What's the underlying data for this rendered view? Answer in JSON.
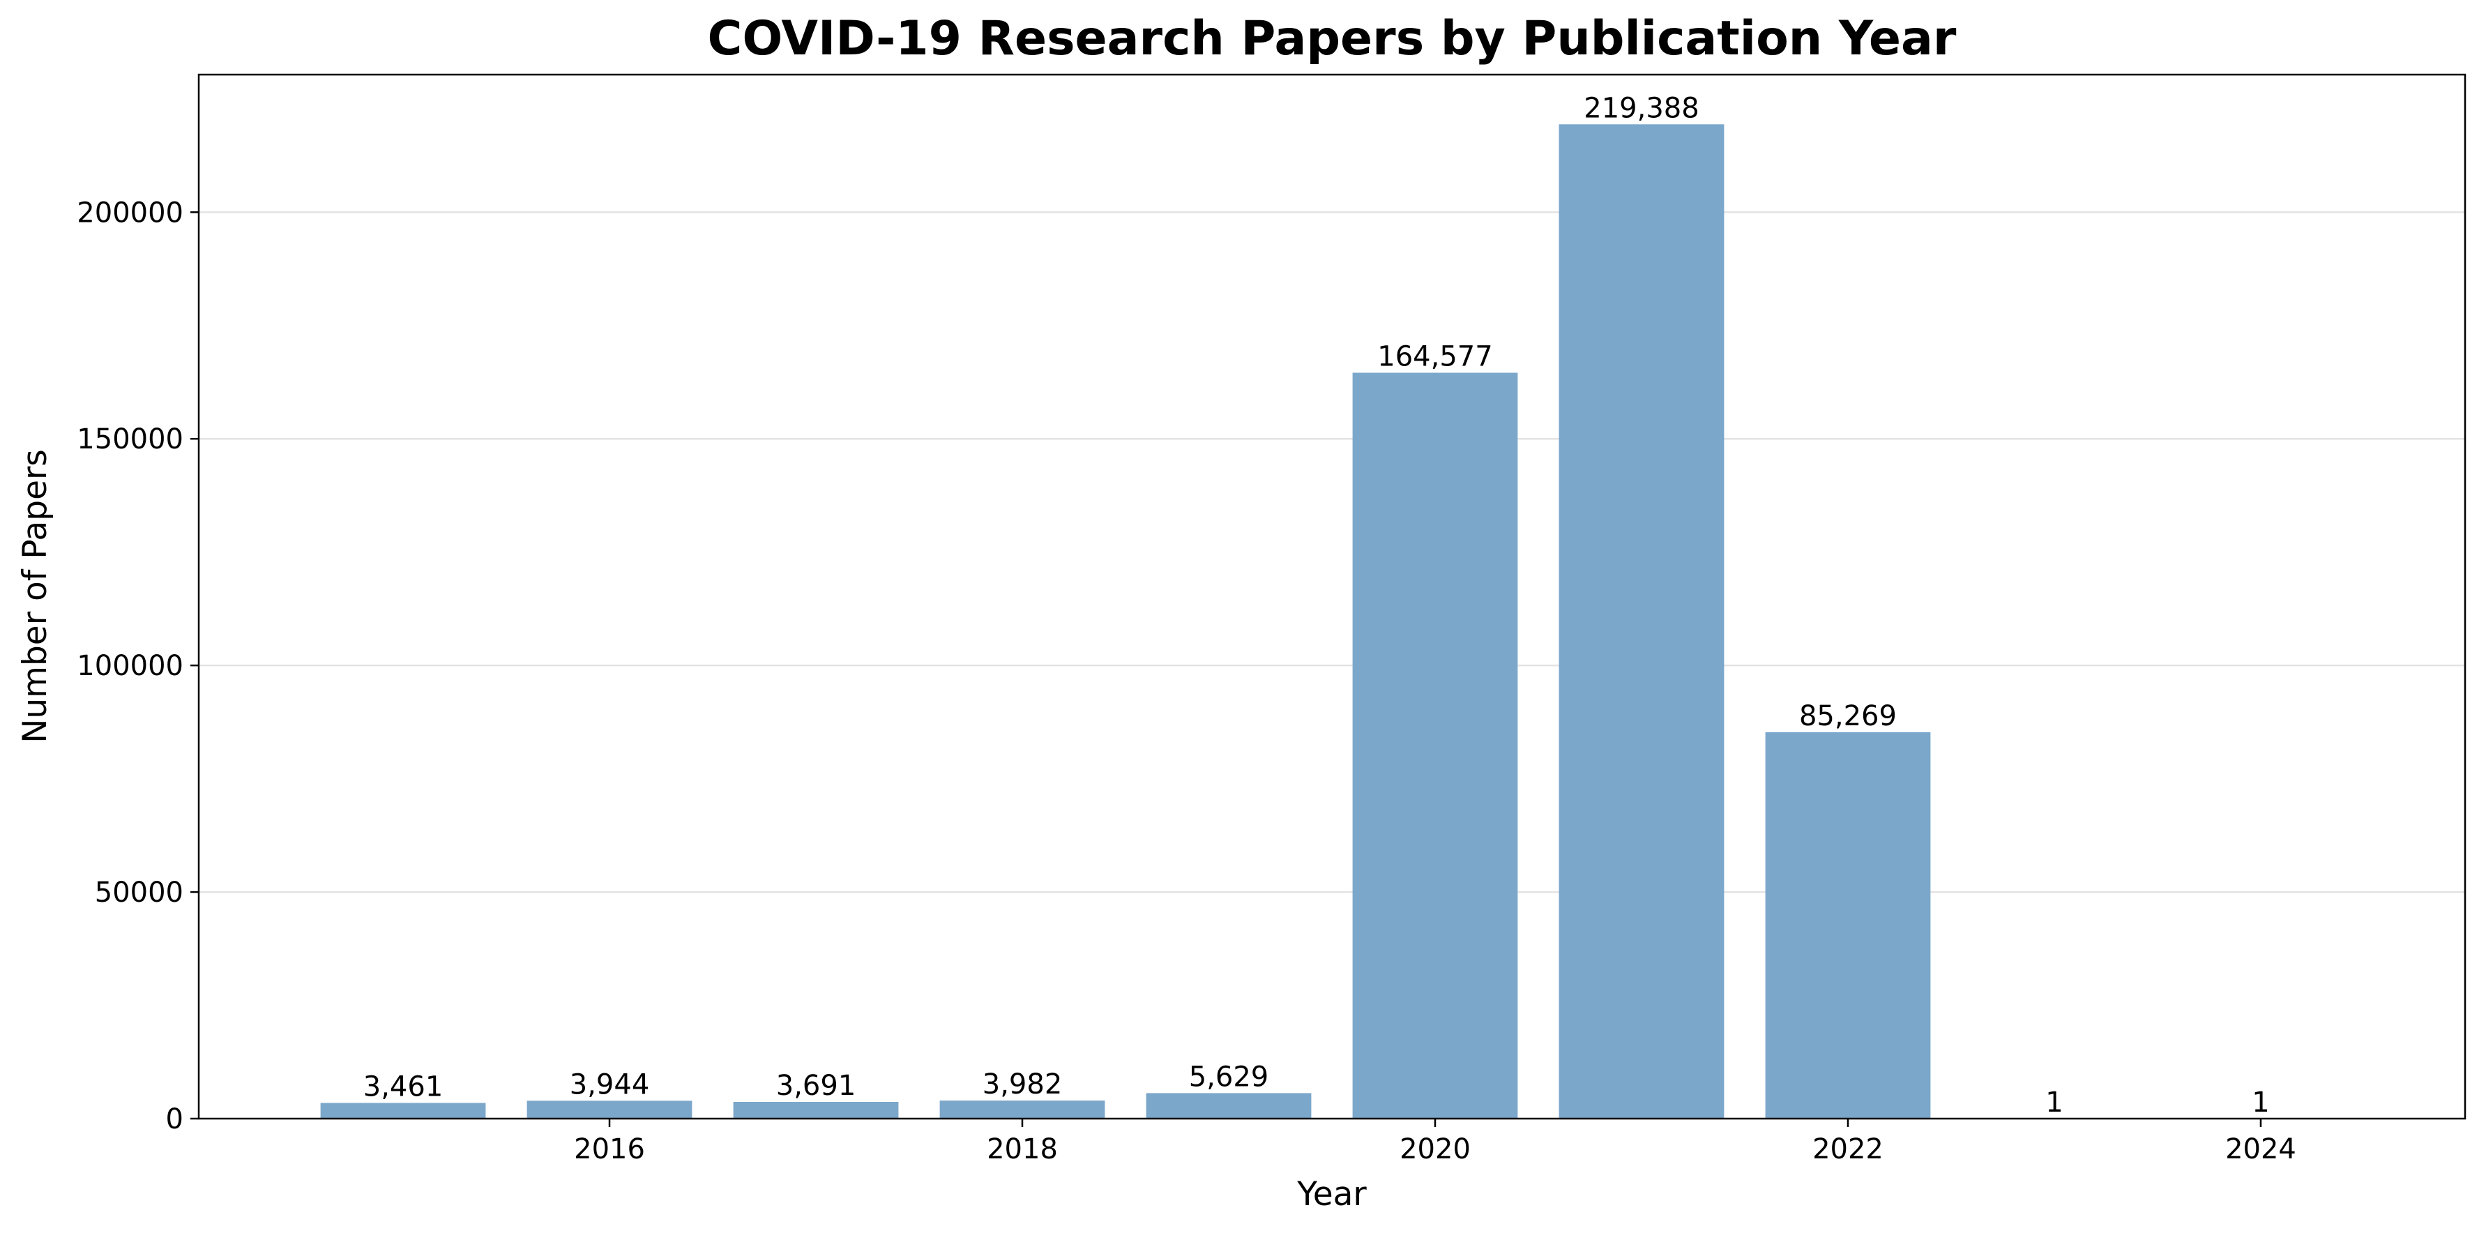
{
  "chart_data": {
    "type": "bar",
    "title": "COVID-19 Research Papers by Publication Year",
    "xlabel": "Year",
    "ylabel": "Number of Papers",
    "categories": [
      2015,
      2016,
      2017,
      2018,
      2019,
      2020,
      2021,
      2022,
      2023,
      2024
    ],
    "values": [
      3461,
      3944,
      3691,
      3982,
      5629,
      164577,
      219388,
      85269,
      1,
      1
    ],
    "value_labels": [
      "3,461",
      "3,944",
      "3,691",
      "3,982",
      "5,629",
      "164,577",
      "219,388",
      "85,269",
      "1",
      "1"
    ],
    "xticks": [
      2016,
      2018,
      2020,
      2022,
      2024
    ],
    "xtick_labels": [
      "2016",
      "2018",
      "2020",
      "2022",
      "2024"
    ],
    "xlim": [
      2014.01,
      2024.99
    ],
    "yticks": [
      0,
      50000,
      100000,
      150000,
      200000
    ],
    "ytick_labels": [
      "0",
      "50000",
      "100000",
      "150000",
      "200000"
    ],
    "ylim": [
      0,
      230356
    ],
    "bar_width_years": 0.8,
    "grid": "y",
    "legend": "none",
    "colors": {
      "bar": "#7ba7cb",
      "grid": "#e3e3e3",
      "axis": "#000000"
    }
  }
}
